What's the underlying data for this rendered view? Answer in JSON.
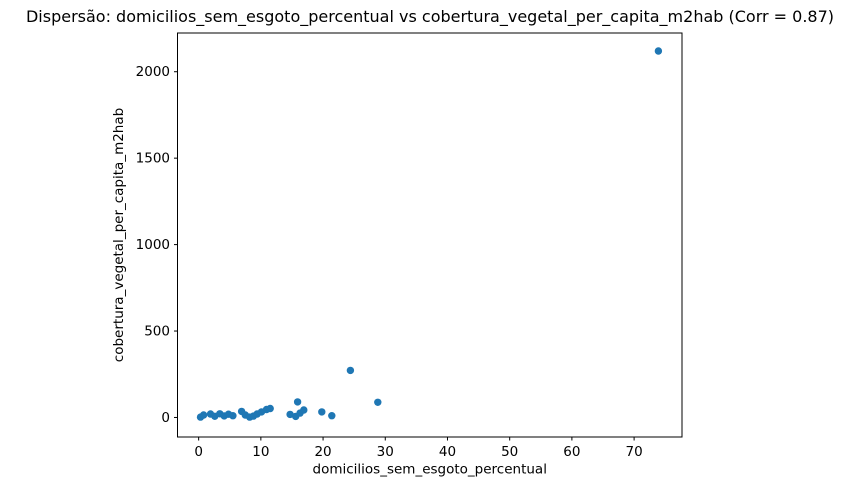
{
  "chart_data": {
    "type": "scatter",
    "title": "Dispersão: domicilios_sem_esgoto_percentual vs cobertura_vegetal_per_capita_m2hab (Corr = 0.87)",
    "xlabel": "domicilios_sem_esgoto_percentual",
    "ylabel": "cobertura_vegetal_per_capita_m2hab",
    "correlation": 0.87,
    "xlim": [
      -3.4,
      77.7
    ],
    "ylim": [
      -113,
      2224
    ],
    "xticks": [
      0,
      10,
      20,
      30,
      40,
      50,
      60,
      70
    ],
    "yticks": [
      0,
      500,
      1000,
      1500,
      2000
    ],
    "grid": false,
    "legend": "none",
    "marker_color": "#1f77b4",
    "axis_color": "#000000",
    "background_color": "#ffffff",
    "points": [
      [
        0.3,
        2
      ],
      [
        0.8,
        14
      ],
      [
        1.9,
        20
      ],
      [
        2.6,
        7
      ],
      [
        3.4,
        21
      ],
      [
        4.1,
        9
      ],
      [
        4.8,
        19
      ],
      [
        5.5,
        10
      ],
      [
        6.9,
        35
      ],
      [
        7.5,
        14
      ],
      [
        8.2,
        2
      ],
      [
        8.8,
        8
      ],
      [
        9.4,
        20
      ],
      [
        10.1,
        32
      ],
      [
        10.9,
        46
      ],
      [
        11.5,
        52
      ],
      [
        14.7,
        18
      ],
      [
        15.6,
        6
      ],
      [
        15.9,
        90
      ],
      [
        16.3,
        25
      ],
      [
        16.9,
        43
      ],
      [
        19.8,
        32
      ],
      [
        21.4,
        10
      ],
      [
        24.4,
        272
      ],
      [
        28.8,
        88
      ],
      [
        73.9,
        2120
      ]
    ]
  }
}
